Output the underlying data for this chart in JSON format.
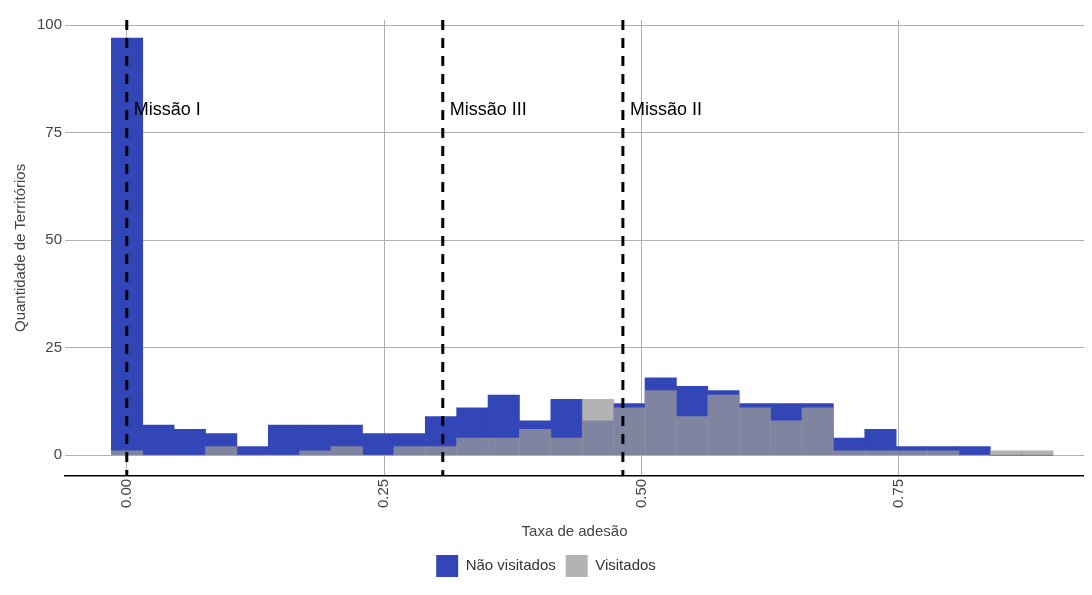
{
  "chart_data": {
    "type": "histogram",
    "xlabel": "Taxa de adesão",
    "ylabel": "Quantidade de Territórios",
    "bins": [
      -0.015,
      0.0155,
      0.046,
      0.0765,
      0.107,
      0.1375,
      0.168,
      0.1985,
      0.229,
      0.2595,
      0.29,
      0.3205,
      0.351,
      0.3815,
      0.412,
      0.4425,
      0.473,
      0.5035,
      0.534,
      0.5645,
      0.595,
      0.6255,
      0.656,
      0.6865,
      0.717,
      0.7475,
      0.778,
      0.8085,
      0.839,
      0.8695,
      0.9
    ],
    "series": [
      {
        "name": "Não visitados",
        "color": "#3346b8",
        "values": [
          97,
          7,
          6,
          5,
          2,
          7,
          7,
          7,
          5,
          5,
          9,
          11,
          14,
          8,
          13,
          8,
          12,
          18,
          16,
          15,
          12,
          12,
          12,
          4,
          6,
          2,
          2,
          2,
          0,
          0
        ]
      },
      {
        "name": "Visitados",
        "color": "#999999",
        "values": [
          1,
          0,
          0,
          2,
          0,
          0,
          1,
          2,
          0,
          2,
          2,
          4,
          4,
          6,
          4,
          13,
          11,
          15,
          9,
          14,
          11,
          8,
          11,
          1,
          1,
          1,
          1,
          0,
          1,
          1
        ]
      }
    ],
    "xlim": [
      -0.06,
      0.93
    ],
    "xticks": [
      {
        "value": 0,
        "label": "0.00"
      },
      {
        "value": 0.25,
        "label": "0.25"
      },
      {
        "value": 0.5,
        "label": "0.50"
      },
      {
        "value": 0.75,
        "label": "0.75"
      }
    ],
    "ylim": [
      -4.8,
      101.2
    ],
    "yticks": [
      0,
      25,
      50,
      75,
      100
    ],
    "ref_lines": [
      {
        "axis": "x",
        "value": 0,
        "label": "Missão I",
        "line_style": "dashed"
      },
      {
        "axis": "x",
        "value": 0.307,
        "label": "Missão III",
        "line_style": "dashed"
      },
      {
        "axis": "x",
        "value": 0.482,
        "label": "Missão II",
        "line_style": "dashed"
      }
    ],
    "grid": true,
    "legend": "bottom"
  }
}
